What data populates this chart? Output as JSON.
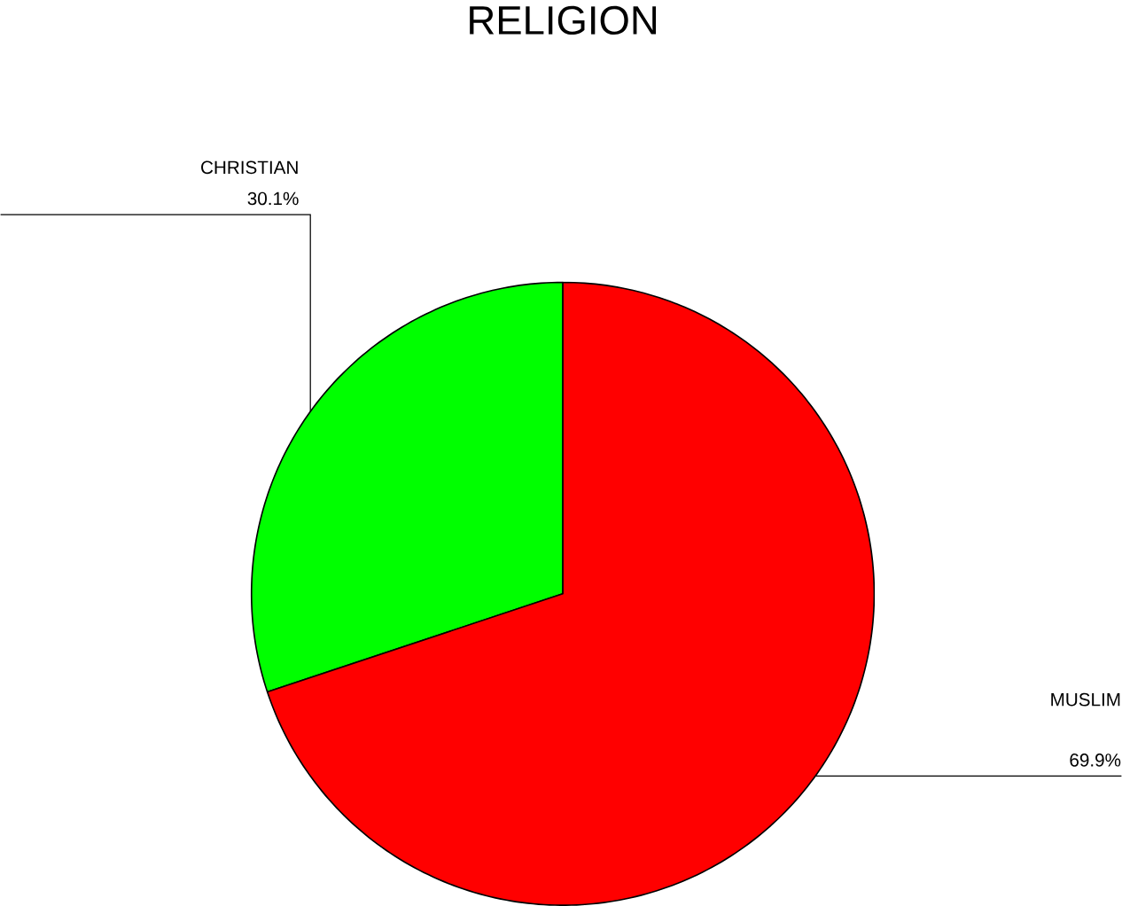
{
  "chart_data": {
    "type": "pie",
    "title": "RELIGION",
    "categories": [
      "CHRISTIAN",
      "MUSLIM"
    ],
    "values": [
      30.1,
      69.9
    ],
    "colors": [
      "#00ff00",
      "#ff0000"
    ],
    "value_labels": [
      "30.1%",
      "69.9%"
    ]
  }
}
